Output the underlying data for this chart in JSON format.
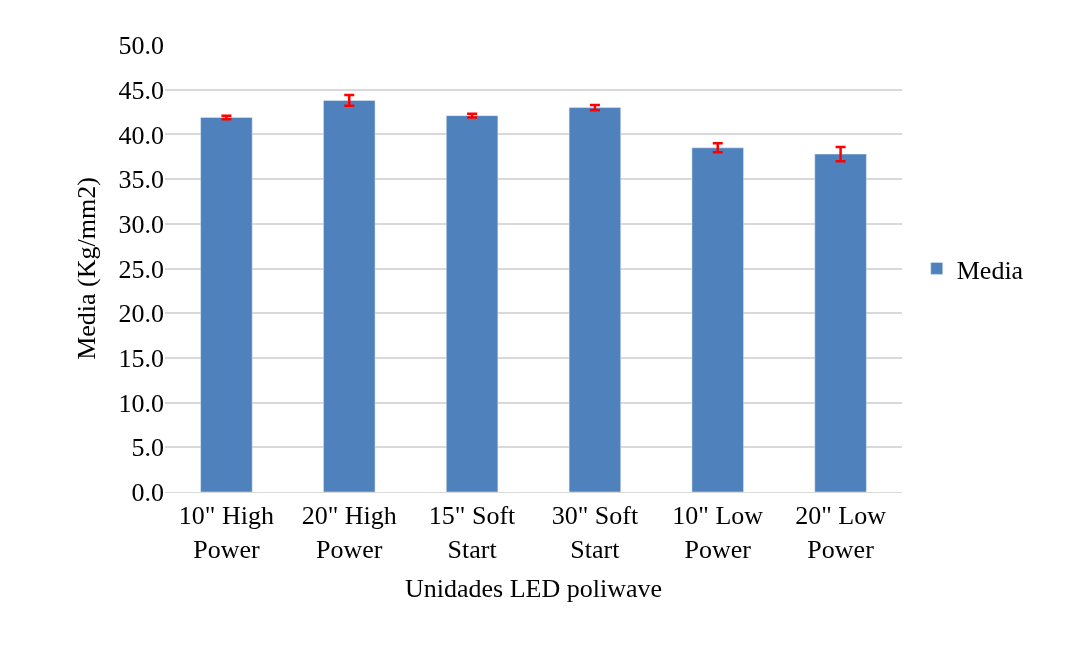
{
  "chart_data": {
    "type": "bar",
    "xlabel": "Unidades LED poliwave",
    "ylabel": "Media (Kg/mm2)",
    "categories": [
      "10\" High Power",
      "20\" High Power",
      "15\" Soft Start",
      "30\" Soft Start",
      "10\" Low Power",
      "20\" Low Power"
    ],
    "series": [
      {
        "name": "Media",
        "color": "#4f81bd",
        "values": [
          41.9,
          43.8,
          42.1,
          43.0,
          38.5,
          37.8
        ],
        "errors": [
          0.2,
          0.6,
          0.2,
          0.3,
          0.5,
          0.8
        ]
      }
    ],
    "ylim": [
      0,
      50
    ],
    "yticks": [
      {
        "value": 0,
        "label": "0.0"
      },
      {
        "value": 5,
        "label": "5.0"
      },
      {
        "value": 10,
        "label": "10.0"
      },
      {
        "value": 15,
        "label": "15.0"
      },
      {
        "value": 20,
        "label": "20.0"
      },
      {
        "value": 25,
        "label": "25.0"
      },
      {
        "value": 30,
        "label": "30.0"
      },
      {
        "value": 35,
        "label": "35.0"
      },
      {
        "value": 40,
        "label": "40.0"
      },
      {
        "value": 45,
        "label": "45.0"
      },
      {
        "value": 50,
        "label": "50.0"
      }
    ],
    "grid": "y",
    "legend": "right"
  }
}
